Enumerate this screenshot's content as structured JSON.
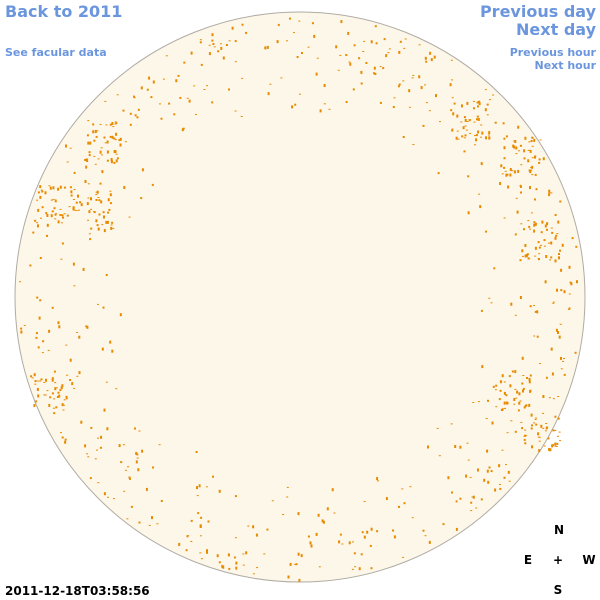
{
  "nav": {
    "back": "Back to 2011",
    "facular": "See facular data",
    "prev_day": "Previous day",
    "next_day": "Next day",
    "prev_hour": "Previous hour",
    "next_hour": "Next hour"
  },
  "timestamp": "2011-12-18T03:58:56",
  "compass": {
    "north": "N",
    "east": "E",
    "center": "+",
    "west": "W",
    "south": "S"
  }
}
